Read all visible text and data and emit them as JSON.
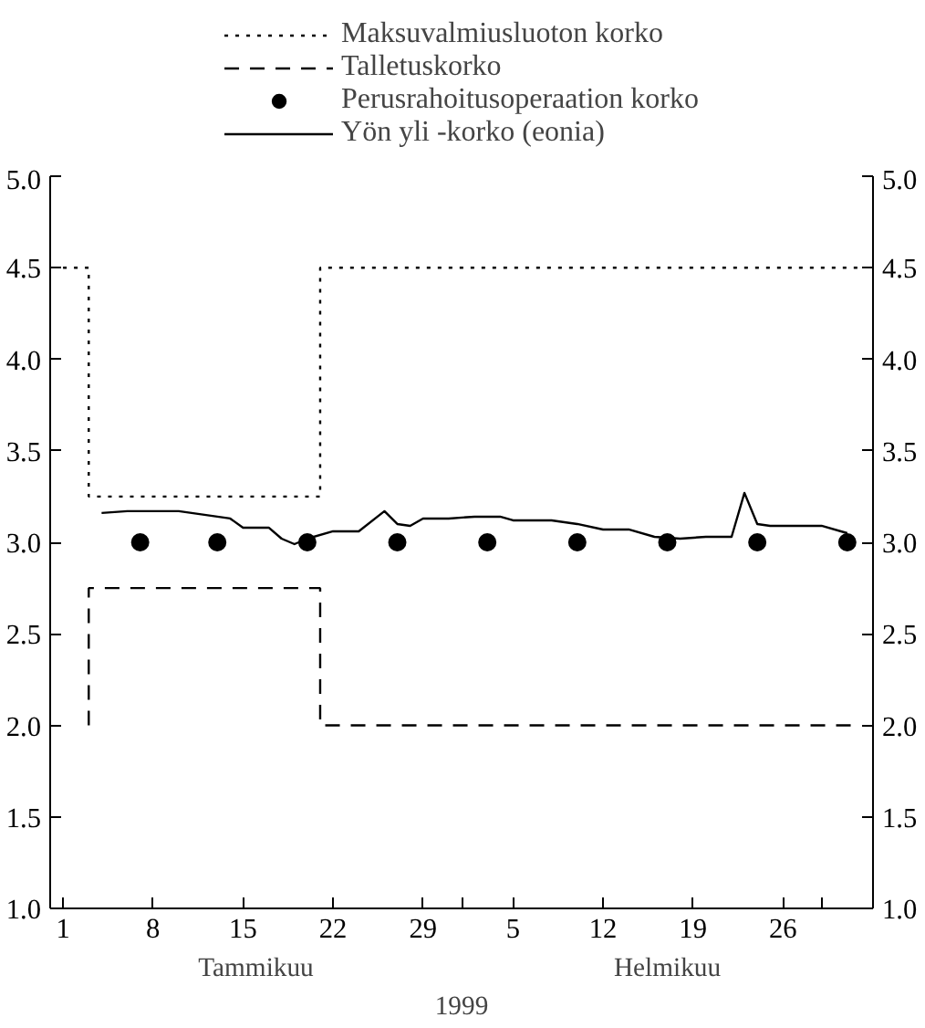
{
  "chart_data": {
    "type": "line",
    "xlabel": "1999",
    "annotations": [
      "Tammikuu",
      "Helmikuu"
    ],
    "xlim": [
      "1998-12-31",
      "1999-03-05"
    ],
    "xticks": [
      {
        "value": "1999-01-01",
        "label": "1"
      },
      {
        "value": "1999-01-08",
        "label": "8"
      },
      {
        "value": "1999-01-15",
        "label": "15"
      },
      {
        "value": "1999-01-22",
        "label": "22"
      },
      {
        "value": "1999-01-29",
        "label": "29"
      },
      {
        "value": "1999-02-01",
        "label": null
      },
      {
        "value": "1999-02-05",
        "label": "5"
      },
      {
        "value": "1999-02-12",
        "label": "12"
      },
      {
        "value": "1999-02-19",
        "label": "19"
      },
      {
        "value": "1999-02-26",
        "label": "26"
      },
      {
        "value": "1999-03-01",
        "label": null
      }
    ],
    "ylim": [
      1.0,
      5.0
    ],
    "yticks": [
      {
        "value": 1.0,
        "label": "1.0"
      },
      {
        "value": 1.5,
        "label": "1.5"
      },
      {
        "value": 2.0,
        "label": "2.0"
      },
      {
        "value": 2.5,
        "label": "2.5"
      },
      {
        "value": 3.0,
        "label": "3.0"
      },
      {
        "value": 3.5,
        "label": "3.5"
      },
      {
        "value": 4.0,
        "label": "4.0"
      },
      {
        "value": 4.5,
        "label": "4.5"
      },
      {
        "value": 5.0,
        "label": "5.0"
      }
    ],
    "y2lim": [
      1.0,
      5.0
    ],
    "y2ticks": [
      {
        "value": 1.0,
        "label": "1.0"
      },
      {
        "value": 1.5,
        "label": "1.5"
      },
      {
        "value": 2.0,
        "label": "2.0"
      },
      {
        "value": 2.5,
        "label": "2.5"
      },
      {
        "value": 3.0,
        "label": "3.0"
      },
      {
        "value": 3.5,
        "label": "3.5"
      },
      {
        "value": 4.0,
        "label": "4.0"
      },
      {
        "value": 4.5,
        "label": "4.5"
      },
      {
        "value": 5.0,
        "label": "5.0"
      }
    ],
    "grid": false,
    "legend": "top",
    "series": [
      {
        "name": "Maksuvalmiusluoton korko",
        "type": "step",
        "line_style": "dotted",
        "color": "#000000",
        "x": [
          "1999-01-01",
          "1999-01-03",
          "1999-01-21",
          "1999-03-04"
        ],
        "values": [
          4.5,
          3.25,
          4.5,
          4.5
        ]
      },
      {
        "name": "Talletuskorko",
        "type": "step",
        "line_style": "dashed",
        "color": "#000000",
        "x": [
          "1999-01-03",
          "1999-01-03",
          "1999-01-21",
          "1999-03-04"
        ],
        "values": [
          2.0,
          2.75,
          2.0,
          2.0
        ]
      },
      {
        "name": "Perusrahoitusoperaation korko",
        "type": "scatter",
        "marker": "circle",
        "color": "#000000",
        "x": [
          "1999-01-07",
          "1999-01-13",
          "1999-01-20",
          "1999-01-27",
          "1999-02-03",
          "1999-02-10",
          "1999-02-17",
          "1999-02-24",
          "1999-03-03"
        ],
        "values": [
          3.0,
          3.0,
          3.0,
          3.0,
          3.0,
          3.0,
          3.0,
          3.0,
          3.0
        ]
      },
      {
        "name": "Yön yli -korko (eonia)",
        "line_style": "solid",
        "color": "#000000",
        "x": [
          "1999-01-04",
          "1999-01-06",
          "1999-01-10",
          "1999-01-12",
          "1999-01-14",
          "1999-01-15",
          "1999-01-17",
          "1999-01-18",
          "1999-01-19",
          "1999-01-20",
          "1999-01-22",
          "1999-01-24",
          "1999-01-26",
          "1999-01-27",
          "1999-01-28",
          "1999-01-29",
          "1999-01-31",
          "1999-02-02",
          "1999-02-04",
          "1999-02-05",
          "1999-02-08",
          "1999-02-10",
          "1999-02-12",
          "1999-02-14",
          "1999-02-16",
          "1999-02-18",
          "1999-02-20",
          "1999-02-22",
          "1999-02-23",
          "1999-02-24",
          "1999-02-25",
          "1999-03-01",
          "1999-03-03"
        ],
        "values": [
          3.16,
          3.17,
          3.17,
          3.15,
          3.13,
          3.08,
          3.08,
          3.02,
          2.99,
          3.02,
          3.06,
          3.06,
          3.17,
          3.1,
          3.09,
          3.13,
          3.13,
          3.14,
          3.14,
          3.12,
          3.12,
          3.1,
          3.07,
          3.07,
          3.03,
          3.02,
          3.03,
          3.03,
          3.27,
          3.1,
          3.09,
          3.09,
          3.05
        ]
      }
    ]
  }
}
